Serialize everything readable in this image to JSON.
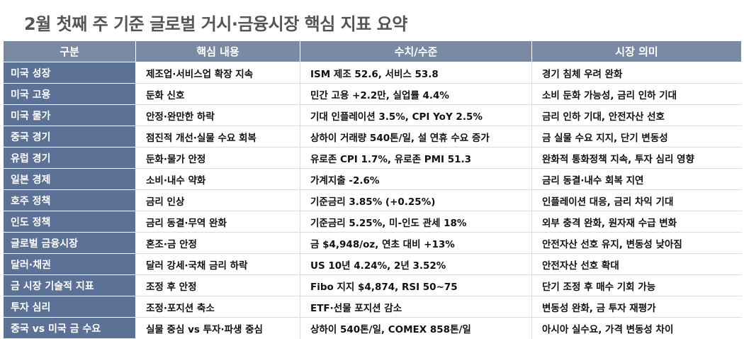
{
  "title": "2월 첫째 주 기준 글로벌 거시·금융시장 핵심 지표 요약",
  "headers": [
    "구분",
    "핵심 내용",
    "수치/수준",
    "시장 의미"
  ],
  "rows": [
    {
      "category": "미국 성장",
      "content": "제조업·서비스업 확장 지속",
      "value": "ISM 제조 52.6, 서비스 53.8",
      "meaning": "경기 침체 우려 완화"
    },
    {
      "category": "미국 고용",
      "content": "둔화 신호",
      "value": "민간 고용 +2.2만, 실업률 4.4%",
      "meaning": "소비 둔화 가능성, 금리 인하 기대"
    },
    {
      "category": "미국 물가",
      "content": "안정·완만한 하락",
      "value": "기대 인플레이션 3.5%, CPI YoY 2.5%",
      "meaning": "금리 인하 기대, 안전자산 선호"
    },
    {
      "category": "중국 경기",
      "content": "점진적 개선·실물 수요 회복",
      "value": "상하이 거래량 540톤/일, 설 연휴 수요 증가",
      "meaning": "금 실물 수요 지지, 단기 변동성"
    },
    {
      "category": "유럽 경기",
      "content": "둔화·물가 안정",
      "value": "유로존 CPI 1.7%, 유로존 PMI 51.3",
      "meaning": "완화적 통화정책 지속, 투자 심리 영향"
    },
    {
      "category": "일본 경제",
      "content": "소비·내수 약화",
      "value": "가계지출 -2.6%",
      "meaning": "금리 동결·내수 회복 지연"
    },
    {
      "category": "호주 정책",
      "content": "금리 인상",
      "value": "기준금리 3.85% (+0.25%)",
      "meaning": "인플레이션 대응, 금리 차익 기대"
    },
    {
      "category": "인도 정책",
      "content": "금리 동결·무역 완화",
      "value": "기준금리 5.25%, 미-인도 관세 18%",
      "meaning": "외부 충격 완화, 원자재 수급 변화"
    },
    {
      "category": "글로벌 금융시장",
      "content": "혼조·금 안정",
      "value": "금 $4,948/oz, 연초 대비 +13%",
      "meaning": "안전자산 선호 유지, 변동성 낮아짐"
    },
    {
      "category": "달러·채권",
      "content": "달러 강세·국채 금리 하락",
      "value": "US 10년 4.24%, 2년 3.52%",
      "meaning": "안전자산 선호 확대"
    },
    {
      "category": "금 시장 기술적 지표",
      "content": "조정 후 안정",
      "value": "Fibo 지지 $4,874, RSI 50~75",
      "meaning": "단기 조정 후 매수 기회 가능"
    },
    {
      "category": "투자 심리",
      "content": "조정·포지션 축소",
      "value": "ETF·선물 포지션 감소",
      "meaning": "변동성 완화, 금 투자 재평가"
    },
    {
      "category": "중국 vs 미국 금 수요",
      "content": "실물 중심 vs 투자·파생 중심",
      "value": "상하이 540톤/일, COMEX 858톤/일",
      "meaning": "아시아 실수요, 가격 변동성 차이"
    }
  ]
}
